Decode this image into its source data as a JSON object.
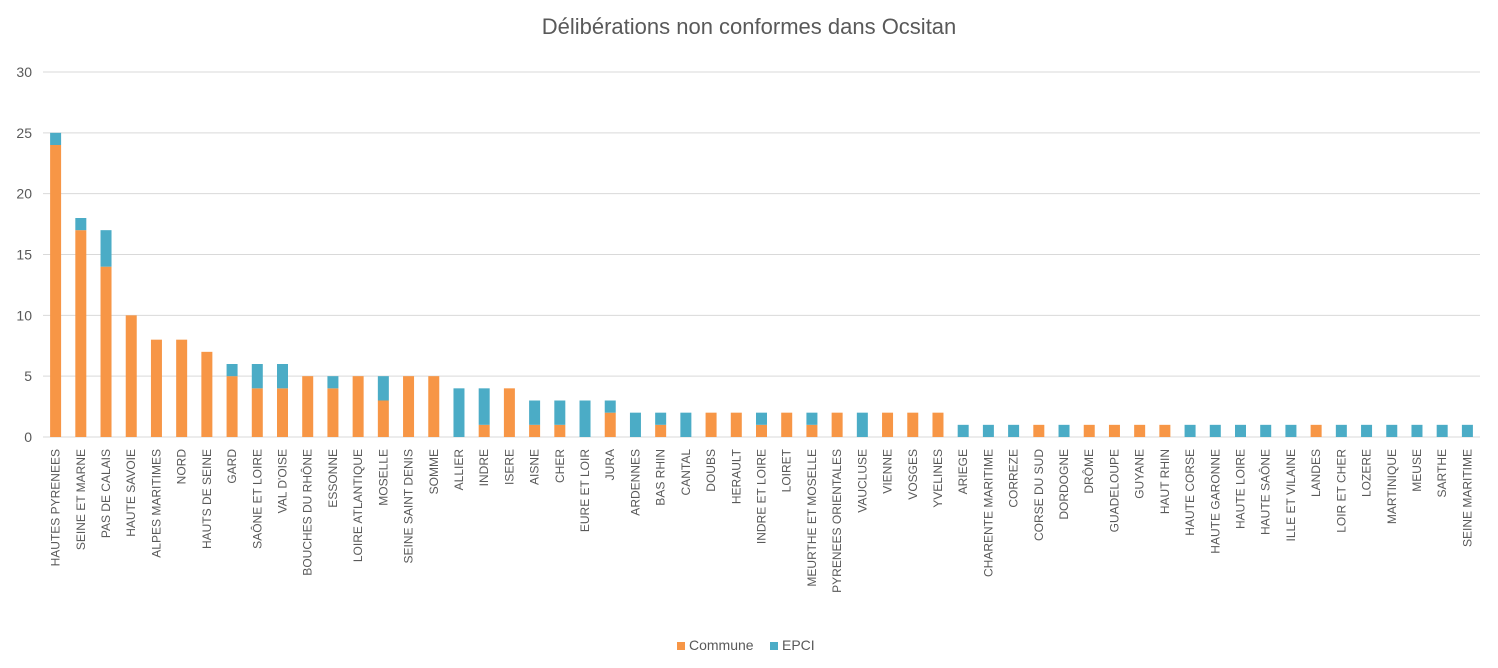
{
  "colors": {
    "Commune": "#F79646",
    "EPCI": "#4BACC6",
    "grid": "#D9D9D9",
    "text": "#595959"
  },
  "chart_data": {
    "type": "bar",
    "stacked": true,
    "title": "Délibérations non conformes dans Ocsitan",
    "xlabel": "",
    "ylabel": "",
    "ylim": [
      0,
      30
    ],
    "yticks": [
      0,
      5,
      10,
      15,
      20,
      25,
      30
    ],
    "grid": true,
    "legend_position": "bottom",
    "categories": [
      "HAUTES PYRENEES",
      "SEINE ET MARNE",
      "PAS DE CALAIS",
      "HAUTE SAVOIE",
      "ALPES MARITIMES",
      "NORD",
      "HAUTS DE SEINE",
      "GARD",
      "SAÔNE ET LOIRE",
      "VAL D'OISE",
      "BOUCHES DU RHÔNE",
      "ESSONNE",
      "LOIRE ATLANTIQUE",
      "MOSELLE",
      "SEINE SAINT DENIS",
      "SOMME",
      "ALLIER",
      "INDRE",
      "ISERE",
      "AISNE",
      "CHER",
      "EURE ET LOIR",
      "JURA",
      "ARDENNES",
      "BAS RHIN",
      "CANTAL",
      "DOUBS",
      "HERAULT",
      "INDRE ET LOIRE",
      "LOIRET",
      "MEURTHE ET MOSELLE",
      "PYRENEES ORIENTALES",
      "VAUCLUSE",
      "VIENNE",
      "VOSGES",
      "YVELINES",
      "ARIEGE",
      "CHARENTE MARITIME",
      "CORREZE",
      "CORSE DU SUD",
      "DORDOGNE",
      "DRÔME",
      "GUADELOUPE",
      "GUYANE",
      "HAUT RHIN",
      "HAUTE CORSE",
      "HAUTE GARONNE",
      "HAUTE LOIRE",
      "HAUTE SAÔNE",
      "ILLE ET VILAINE",
      "LANDES",
      "LOIR ET CHER",
      "LOZERE",
      "MARTINIQUE",
      "MEUSE",
      "SARTHE",
      "SEINE MARITIME"
    ],
    "series": [
      {
        "name": "Commune",
        "values": [
          24,
          17,
          14,
          10,
          8,
          8,
          7,
          5,
          4,
          4,
          5,
          4,
          5,
          3,
          5,
          5,
          0,
          1,
          4,
          1,
          1,
          0,
          2,
          0,
          1,
          0,
          2,
          2,
          1,
          2,
          1,
          2,
          0,
          2,
          2,
          2,
          0,
          0,
          0,
          1,
          0,
          1,
          1,
          1,
          1,
          0,
          0,
          0,
          0,
          0,
          1,
          0,
          0,
          0,
          0,
          0,
          0
        ]
      },
      {
        "name": "EPCI",
        "values": [
          1,
          1,
          3,
          0,
          0,
          0,
          0,
          1,
          2,
          2,
          0,
          1,
          0,
          2,
          0,
          0,
          4,
          3,
          0,
          2,
          2,
          3,
          1,
          2,
          1,
          2,
          0,
          0,
          1,
          0,
          1,
          0,
          2,
          0,
          0,
          0,
          1,
          1,
          1,
          0,
          1,
          0,
          0,
          0,
          0,
          1,
          1,
          1,
          1,
          1,
          0,
          1,
          1,
          1,
          1,
          1,
          1
        ]
      }
    ]
  }
}
